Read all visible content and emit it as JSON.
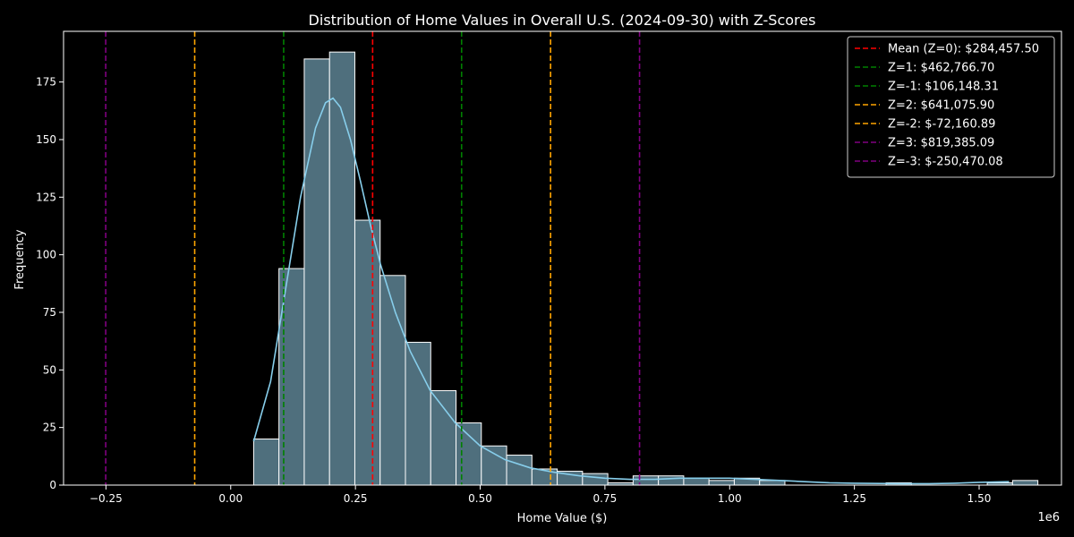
{
  "chart_data": {
    "type": "histogram",
    "title": "Distribution of Home Values in Overall U.S. (2024-09-30) with Z-Scores",
    "xlabel": "Home Value ($)",
    "ylabel": "Frequency",
    "x_offset_label": "1e6",
    "xlim": [
      -0.335,
      1.665
    ],
    "ylim": [
      0,
      197
    ],
    "x_ticks": [
      -0.25,
      0.0,
      0.25,
      0.5,
      0.75,
      1.0,
      1.25,
      1.5
    ],
    "x_tick_labels": [
      "−0.25",
      "0.00",
      "0.25",
      "0.50",
      "0.75",
      "1.00",
      "1.25",
      "1.50"
    ],
    "y_ticks": [
      0,
      25,
      50,
      75,
      100,
      125,
      150,
      175
    ],
    "y_tick_labels": [
      "0",
      "25",
      "50",
      "75",
      "100",
      "125",
      "150",
      "175"
    ],
    "bins": {
      "start": 0.046,
      "width": 0.0507,
      "counts": [
        20,
        94,
        185,
        188,
        115,
        91,
        62,
        41,
        27,
        17,
        13,
        7,
        6,
        5,
        1,
        4,
        4,
        3,
        2,
        3,
        2,
        0,
        0,
        0,
        0,
        1,
        0,
        0,
        0,
        1,
        2
      ]
    },
    "kde": {
      "x": [
        0.046,
        0.08,
        0.11,
        0.14,
        0.17,
        0.19,
        0.205,
        0.22,
        0.24,
        0.26,
        0.28,
        0.3,
        0.33,
        0.36,
        0.4,
        0.45,
        0.5,
        0.55,
        0.6,
        0.65,
        0.7,
        0.75,
        0.8,
        0.85,
        0.9,
        0.95,
        1.0,
        1.05,
        1.1,
        1.15,
        1.2,
        1.25,
        1.3,
        1.35,
        1.4,
        1.45,
        1.5,
        1.56
      ],
      "y": [
        19,
        45,
        85,
        125,
        155,
        166,
        168,
        164,
        150,
        132,
        113,
        96,
        75,
        58,
        41,
        27,
        17,
        11,
        7.5,
        5.5,
        4,
        3,
        2.5,
        2.5,
        3,
        3,
        3,
        2.5,
        2,
        1.5,
        1,
        0.8,
        0.7,
        0.6,
        0.6,
        0.8,
        1.2,
        1.5
      ]
    },
    "reference_lines": [
      {
        "label": "Mean (Z=0): $284,457.50",
        "value": 0.2844575,
        "color": "#ff0000"
      },
      {
        "label": "Z=1: $462,766.70",
        "value": 0.4627667,
        "color": "#008000"
      },
      {
        "label": "Z=-1: $106,148.31",
        "value": 0.10614831,
        "color": "#008000"
      },
      {
        "label": "Z=2: $641,075.90",
        "value": 0.6410759,
        "color": "#ffa500"
      },
      {
        "label": "Z=-2: $-72,160.89",
        "value": -0.07216089,
        "color": "#ffa500"
      },
      {
        "label": "Z=3: $819,385.09",
        "value": 0.81938509,
        "color": "#800080"
      },
      {
        "label": "Z=-3: $-250,470.08",
        "value": -0.25047008,
        "color": "#800080"
      }
    ],
    "legend_position": "upper right",
    "bar_color": "#4f6f7d",
    "kde_color": "#87ceeb",
    "background": "#000000"
  }
}
